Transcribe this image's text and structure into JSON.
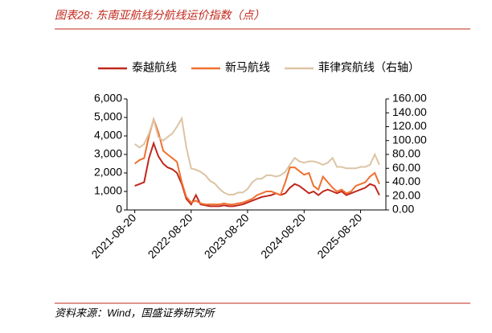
{
  "title": "图表28:  东南亚航线分航线运价指数（点）",
  "source": "资料来源：Wind，国盛证券研究所",
  "chart_data": {
    "type": "line",
    "x": [
      "2021-08-20",
      "2021-09-20",
      "2021-10-20",
      "2021-11-20",
      "2021-12-20",
      "2022-01-20",
      "2022-02-20",
      "2022-03-20",
      "2022-04-20",
      "2022-05-20",
      "2022-06-20",
      "2022-07-20",
      "2022-08-20",
      "2022-09-20",
      "2022-10-20",
      "2022-11-20",
      "2022-12-20",
      "2023-01-20",
      "2023-02-20",
      "2023-03-20",
      "2023-04-20",
      "2023-05-20",
      "2023-06-20",
      "2023-07-20",
      "2023-08-20",
      "2023-09-20",
      "2023-10-20",
      "2023-11-20",
      "2023-12-20",
      "2024-01-20",
      "2024-02-20",
      "2024-03-20",
      "2024-04-20",
      "2024-05-20",
      "2024-06-20",
      "2024-07-20",
      "2024-08-20",
      "2024-09-20",
      "2024-10-20",
      "2024-11-20",
      "2024-12-20",
      "2025-01-20",
      "2025-02-20",
      "2025-03-20",
      "2025-04-20",
      "2025-05-20",
      "2025-06-20",
      "2025-07-20",
      "2025-08-20",
      "2025-09-20",
      "2025-10-20",
      "2025-11-20",
      "2025-12-20"
    ],
    "series": [
      {
        "name": "泰越航线",
        "color": "#c0281c",
        "values": [
          1300,
          1400,
          1500,
          2800,
          3600,
          2900,
          2500,
          2300,
          2200,
          2000,
          1400,
          600,
          300,
          800,
          300,
          250,
          200,
          200,
          200,
          250,
          200,
          200,
          250,
          300,
          400,
          500,
          600,
          700,
          750,
          800,
          900,
          800,
          900,
          1200,
          1400,
          1300,
          1100,
          900,
          1000,
          800,
          1000,
          1100,
          1000,
          900,
          1000,
          800,
          900,
          1000,
          1100,
          1200,
          1400,
          1300,
          800
        ]
      },
      {
        "name": "新马航线",
        "color": "#f07030",
        "values": [
          2500,
          2700,
          2800,
          4000,
          4900,
          4200,
          3200,
          3000,
          2800,
          2600,
          1500,
          700,
          400,
          500,
          350,
          300,
          300,
          300,
          300,
          350,
          300,
          300,
          350,
          400,
          500,
          600,
          800,
          900,
          1000,
          1000,
          900,
          800,
          1500,
          2300,
          2300,
          2100,
          1900,
          2000,
          1300,
          1100,
          1800,
          1500,
          1200,
          1000,
          1100,
          900,
          1000,
          1300,
          1400,
          1500,
          1800,
          2000,
          1400
        ]
      },
      {
        "name": "菲律宾航线（右轴）",
        "color": "#dcc4a4",
        "axis": "y2",
        "values": [
          95,
          90,
          95,
          110,
          130,
          105,
          100,
          105,
          110,
          120,
          132,
          90,
          60,
          58,
          55,
          50,
          42,
          38,
          30,
          25,
          22,
          22,
          25,
          25,
          30,
          40,
          45,
          45,
          50,
          50,
          48,
          50,
          55,
          65,
          75,
          70,
          68,
          70,
          70,
          68,
          65,
          68,
          75,
          62,
          62,
          60,
          60,
          60,
          62,
          62,
          65,
          80,
          65
        ]
      }
    ],
    "xlim": [
      "2021-07-01",
      "2026-01-31"
    ],
    "xticks": [
      "2021-08-20",
      "2022-08-20",
      "2023-08-20",
      "2024-08-20",
      "2025-08-20"
    ],
    "ylim": [
      0,
      6000
    ],
    "yticks": [
      0,
      {
        "value": 1000,
        "label": "1,000"
      },
      {
        "value": 2000,
        "label": "2,000"
      },
      {
        "value": 3000,
        "label": "3,000"
      },
      {
        "value": 4000,
        "label": "4,000"
      },
      {
        "value": 5000,
        "label": "5,000"
      },
      {
        "value": 6000,
        "label": "6,000"
      }
    ],
    "y2lim": [
      0,
      160
    ],
    "y2ticks": [
      {
        "value": 0,
        "label": "0.00"
      },
      {
        "value": 20,
        "label": "20.00"
      },
      {
        "value": 40,
        "label": "40.00"
      },
      {
        "value": 60,
        "label": "60.00"
      },
      {
        "value": 80,
        "label": "80.00"
      },
      {
        "value": 100,
        "label": "100.00"
      },
      {
        "value": 120,
        "label": "120.00"
      },
      {
        "value": 140,
        "label": "140.00"
      },
      {
        "value": 160,
        "label": "160.00"
      }
    ],
    "legend": "top"
  }
}
